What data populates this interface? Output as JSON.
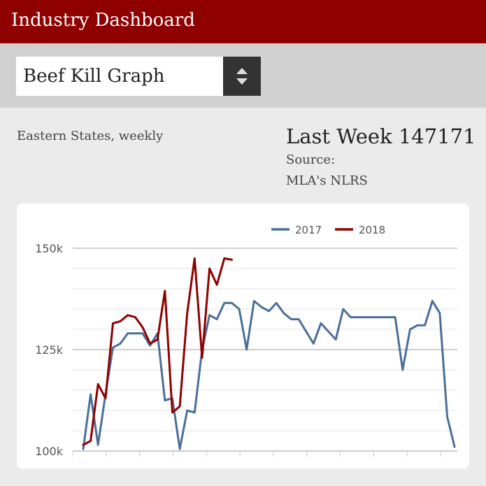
{
  "header": {
    "title": "Industry Dashboard"
  },
  "selector": {
    "value": "Beef Kill Graph"
  },
  "summary": {
    "region": "Eastern States, weekly",
    "last_week": "Last Week 147171",
    "source_label": "Source:",
    "source_value": "MLA's NLRS"
  },
  "colors": {
    "brand": "#8f0000",
    "series_2017": "#4a6f98",
    "series_2018": "#8f0000"
  },
  "chart_data": {
    "type": "line",
    "title": "",
    "xlabel": "",
    "ylabel": "",
    "ylim": [
      100000,
      150000
    ],
    "yticks": [
      {
        "value": 150000,
        "label": "150k"
      },
      {
        "value": 125000,
        "label": "125k"
      },
      {
        "value": 100000,
        "label": "100k"
      }
    ],
    "x_count": 52,
    "grid": true,
    "legend": "top-center",
    "series": [
      {
        "name": "2017",
        "color": "#4a6f98",
        "values": [
          100500,
          114000,
          101500,
          114000,
          125500,
          126500,
          129000,
          129000,
          129000,
          126000,
          129000,
          112500,
          113000,
          100500,
          110000,
          109500,
          125000,
          133500,
          132500,
          136500,
          136500,
          135000,
          125000,
          137000,
          135500,
          134500,
          136500,
          134000,
          132500,
          132500,
          129500,
          126500,
          131500,
          129500,
          127500,
          135000,
          133000,
          133000,
          133000,
          133000,
          133000,
          133000,
          133000,
          120000,
          130000,
          131000,
          131000,
          137000,
          134000,
          108500,
          101000
        ]
      },
      {
        "name": "2018",
        "color": "#8f0000",
        "values": [
          101500,
          102500,
          116500,
          113000,
          131500,
          132000,
          133500,
          133000,
          130500,
          126500,
          127500,
          139500,
          109500,
          111000,
          134000,
          147500,
          123000,
          145000,
          141000,
          147500,
          147171
        ]
      }
    ]
  }
}
